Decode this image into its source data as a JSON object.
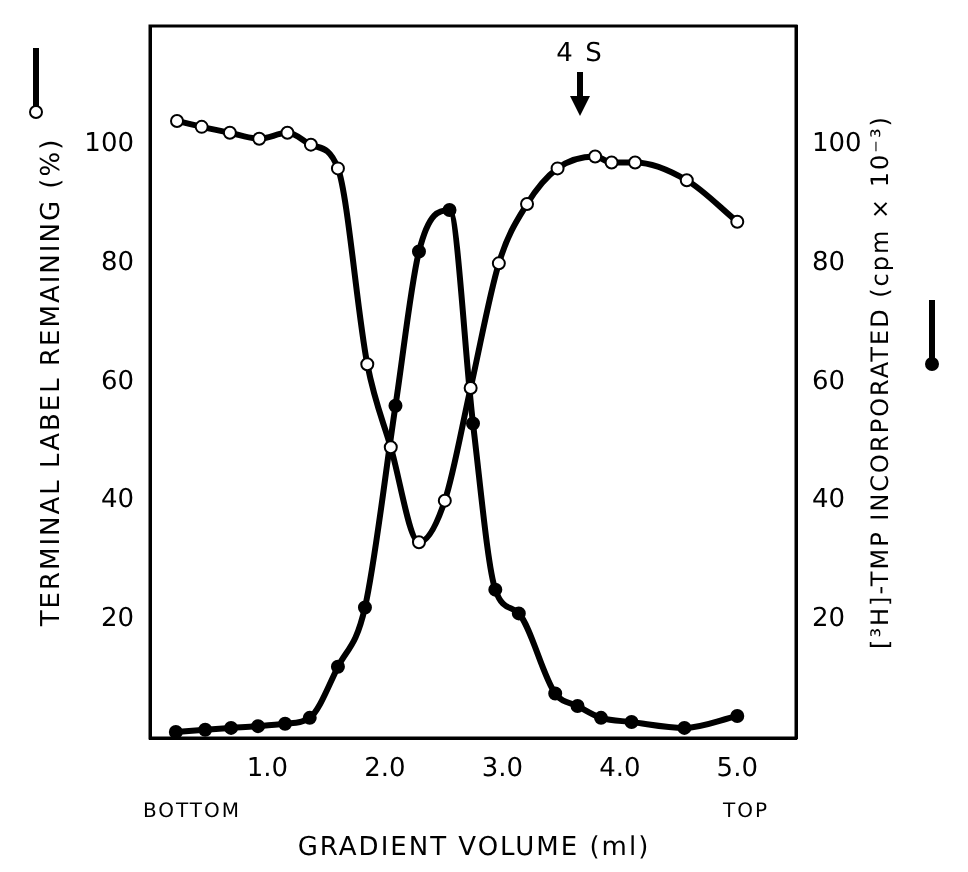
{
  "chart_data": {
    "type": "line",
    "xlabel": "GRADIENT VOLUME (ml)",
    "ylabel": "TERMINAL LABEL REMAINING (%)",
    "y2label": "[³H]-TMP INCORPORATED (cpm × 10⁻³)",
    "annotations": [
      "BOTTOM",
      "TOP",
      "4 S"
    ],
    "marker": "circle",
    "xlim": [
      0,
      5.5
    ],
    "xticks": [
      {
        "value": 1,
        "label": "1.0"
      },
      {
        "value": 2,
        "label": "2.0"
      },
      {
        "value": 3,
        "label": "3.0"
      },
      {
        "value": 4,
        "label": "4.0"
      },
      {
        "value": 5,
        "label": "5.0"
      }
    ],
    "ylim": [
      0,
      120
    ],
    "yticks": [
      20,
      40,
      60,
      80,
      100
    ],
    "y2lim": [
      0,
      120
    ],
    "y2ticks": [
      20,
      40,
      60,
      80,
      100
    ],
    "series": [
      {
        "color": "#000000",
        "axis": "y",
        "x": [
          0.23,
          0.44,
          0.68,
          0.93,
          1.17,
          1.37,
          1.6,
          1.85,
          2.05,
          2.29,
          2.51,
          2.73,
          2.97,
          3.21,
          3.47,
          3.79,
          3.93,
          4.13,
          4.57,
          5.0
        ],
        "values": [
          104,
          103,
          102,
          101,
          102,
          100,
          96,
          63,
          49,
          33,
          40,
          59,
          80,
          90,
          96,
          98,
          97,
          97,
          94,
          87
        ]
      },
      {
        "color": "#000000",
        "axis": "y2",
        "x": [
          0.22,
          0.47,
          0.69,
          0.92,
          1.15,
          1.36,
          1.6,
          1.83,
          2.09,
          2.29,
          2.55,
          2.75,
          2.94,
          3.14,
          3.45,
          3.64,
          3.84,
          4.1,
          4.55,
          5.0
        ],
        "values": [
          1,
          1.4,
          1.7,
          2,
          2.4,
          3.4,
          12,
          22,
          56,
          82,
          89,
          53,
          25,
          21,
          7.5,
          5.4,
          3.4,
          2.7,
          1.7,
          3.7
        ]
      }
    ]
  }
}
